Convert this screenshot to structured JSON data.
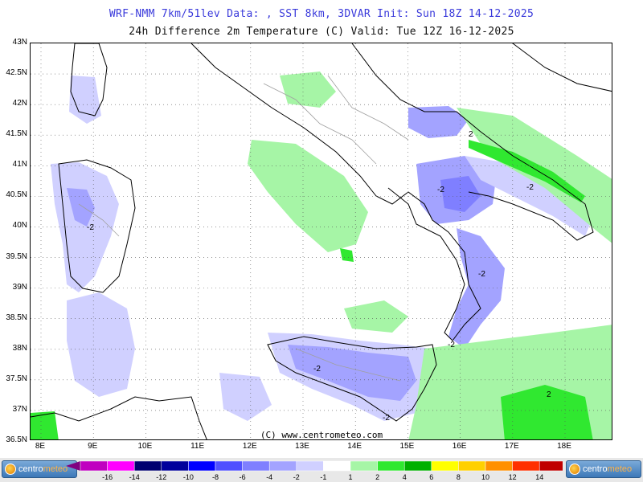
{
  "header": {
    "line1": "WRF-NMM 7km/51lev  Data: , SST 8km, 3DVAR  Init: Sun 18Z 14-12-2025",
    "line2": "24h Difference 2m Temperature (C)  Valid: Tue 12Z 16-12-2025"
  },
  "axes": {
    "lat_labels": [
      "43N",
      "42.5N",
      "42N",
      "41.5N",
      "41N",
      "40.5N",
      "40N",
      "39.5N",
      "39N",
      "38.5N",
      "38N",
      "37.5N",
      "37N",
      "36.5N"
    ],
    "lon_labels": [
      "8E",
      "9E",
      "10E",
      "11E",
      "12E",
      "13E",
      "14E",
      "15E",
      "16E",
      "17E",
      "18E"
    ]
  },
  "map": {
    "contour_labels": [
      "2",
      "-2",
      "-2",
      "-2",
      "-2",
      "-2",
      "-2",
      "-2",
      "2"
    ]
  },
  "copyright": "(C) www.centrometeo.com",
  "logos": {
    "left": {
      "prefix": "centro",
      "suffix": "meteo"
    },
    "right": {
      "prefix": "centro",
      "suffix": "meteo"
    }
  },
  "legend": {
    "labels": [
      "-16",
      "-14",
      "-12",
      "-10",
      "-8",
      "-6",
      "-4",
      "-2",
      "-1",
      "1",
      "2",
      "4",
      "6",
      "8",
      "10",
      "12",
      "14",
      "16"
    ],
    "colors": [
      "#c000c0",
      "#ff00ff",
      "#000070",
      "#00009c",
      "#0000ff",
      "#5050ff",
      "#7f7fff",
      "#a3a3ff",
      "#d0d0ff",
      "#ffffff",
      "#a6f5a6",
      "#30e830",
      "#00b000",
      "#ffff00",
      "#ffd000",
      "#ff9000",
      "#ff3000",
      "#c00000",
      "#800000"
    ],
    "arrow_left_color": "#800080",
    "arrow_right_color": "#800000"
  },
  "colors": {
    "land_outline": "#000000",
    "region_outline": "#a0a0a0",
    "grid": "#555555",
    "light_blue": "#d0d0ff",
    "blue": "#a3a3ff",
    "mid_blue": "#7f7fff",
    "light_green": "#a6f5a6",
    "green": "#30e830"
  }
}
